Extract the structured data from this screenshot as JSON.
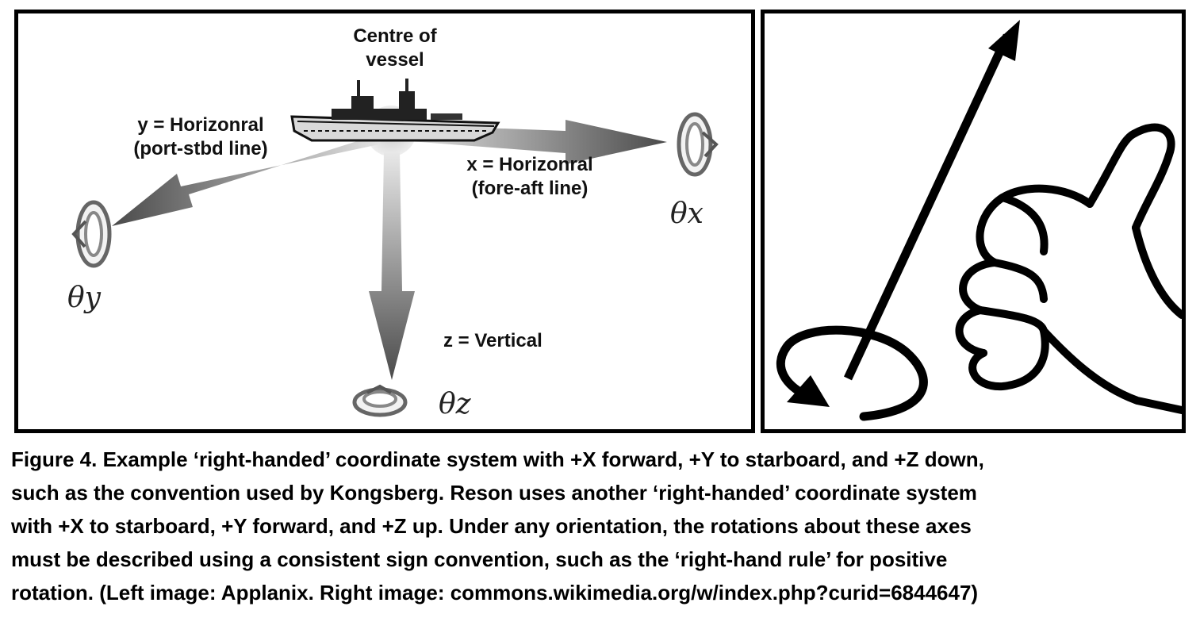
{
  "figure": {
    "left": {
      "center_label": [
        "Centre of",
        "vessel"
      ],
      "y_axis_label": [
        "y = Horizonral",
        "(port-stbd line)"
      ],
      "x_axis_label": [
        "x = Horizonral",
        "(fore-aft line)"
      ],
      "z_axis_label": "z = Vertical",
      "theta_x": "θx",
      "theta_y": "θy",
      "theta_z": "θz"
    },
    "right": {}
  },
  "caption": {
    "lines": [
      "Figure 4. Example ‘right-handed’ coordinate system with +X forward, +Y to starboard, and +Z down,",
      "such as the convention used by Kongsberg.  Reson uses another ‘right-handed’ coordinate system",
      "with +X to starboard, +Y forward, and +Z up.  Under any orientation, the rotations about these axes",
      "must be described using a consistent sign convention, such as the ‘right-hand rule’ for positive",
      "rotation.  (Left image: Applanix. Right image: commons.wikimedia.org/w/index.php?curid=6844647)"
    ]
  }
}
